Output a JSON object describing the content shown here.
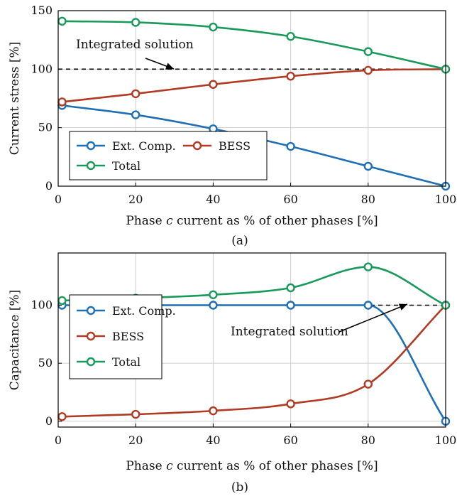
{
  "chart_data": [
    {
      "type": "line",
      "caption": "(a)",
      "xlabel_parts": [
        "Phase ",
        "c",
        " current as % of other phases [%]"
      ],
      "ylabel": "Current stress [%]",
      "xlim": [
        0,
        100
      ],
      "ylim": [
        0,
        150
      ],
      "xticks": [
        0,
        20,
        40,
        60,
        80,
        100
      ],
      "yticks": [
        0,
        50,
        100,
        150
      ],
      "grid": true,
      "legend": {
        "placement": "lower-left",
        "columns": 2
      },
      "reference_line": {
        "y": 100,
        "style": "dashed"
      },
      "annotation": {
        "text": "Integrated solution",
        "points_to": [
          30,
          100
        ]
      },
      "series": [
        {
          "name": "Ext. Comp.",
          "color": "#1f6fb4",
          "x": [
            1,
            20,
            40,
            60,
            80,
            100
          ],
          "y": [
            69,
            61,
            49,
            34,
            17,
            0
          ]
        },
        {
          "name": "BESS",
          "color": "#b03a24",
          "x": [
            1,
            20,
            40,
            60,
            80,
            100
          ],
          "y": [
            72,
            79,
            87,
            94,
            99,
            100
          ]
        },
        {
          "name": "Total",
          "color": "#1a9a5a",
          "x": [
            1,
            20,
            40,
            60,
            80,
            100
          ],
          "y": [
            141,
            140,
            136,
            128,
            115,
            100
          ]
        }
      ]
    },
    {
      "type": "line",
      "caption": "(b)",
      "xlabel_parts": [
        "Phase ",
        "c",
        " current as % of other phases [%]"
      ],
      "ylabel": "Capacitance [%]",
      "xlim": [
        0,
        100
      ],
      "ylim": [
        -5,
        145
      ],
      "xticks": [
        0,
        20,
        40,
        60,
        80,
        100
      ],
      "yticks": [
        0,
        50,
        100
      ],
      "grid": true,
      "legend": {
        "placement": "center-left",
        "columns": 1
      },
      "reference_line": {
        "y": 100,
        "style": "dashed"
      },
      "annotation": {
        "text": "Integrated solution",
        "points_to": [
          90,
          100
        ]
      },
      "series": [
        {
          "name": "Ext. Comp.",
          "color": "#1f6fb4",
          "x": [
            1,
            20,
            40,
            60,
            80,
            100
          ],
          "y": [
            100,
            100,
            100,
            100,
            100,
            0
          ]
        },
        {
          "name": "BESS",
          "color": "#b03a24",
          "x": [
            1,
            20,
            40,
            60,
            80,
            100
          ],
          "y": [
            4,
            6,
            9,
            15,
            32,
            100
          ]
        },
        {
          "name": "Total",
          "color": "#1a9a5a",
          "x": [
            1,
            20,
            40,
            60,
            80,
            100
          ],
          "y": [
            104,
            106,
            109,
            115,
            133,
            100
          ]
        }
      ]
    }
  ]
}
